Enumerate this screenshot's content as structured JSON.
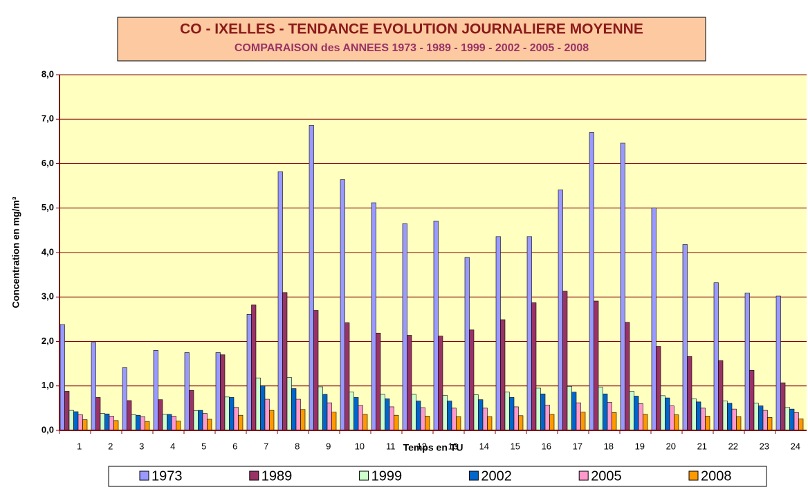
{
  "chart_data": {
    "type": "bar",
    "title": "CO - IXELLES - TENDANCE EVOLUTION JOURNALIERE MOYENNE",
    "subtitle": "COMPARAISON des ANNEES 1973 - 1989 - 1999 - 2002 - 2005 - 2008",
    "x_label": "Temps en TU",
    "y_label": "Concentration en mg/m³",
    "categories": [
      "1",
      "2",
      "3",
      "4",
      "5",
      "6",
      "7",
      "8",
      "9",
      "10",
      "11",
      "12",
      "13",
      "14",
      "15",
      "16",
      "17",
      "18",
      "19",
      "20",
      "21",
      "22",
      "23",
      "24"
    ],
    "series": [
      {
        "name": "1973",
        "color": "#9999ff",
        "values": [
          2.38,
          1.98,
          1.41,
          1.8,
          1.75,
          1.75,
          2.61,
          5.82,
          6.86,
          5.64,
          5.12,
          4.65,
          4.71,
          3.89,
          4.36,
          4.36,
          5.41,
          6.7,
          6.46,
          5.0,
          4.18,
          3.32,
          3.09,
          3.02
        ]
      },
      {
        "name": "1989",
        "color": "#993366",
        "values": [
          0.88,
          0.74,
          0.67,
          0.69,
          0.9,
          1.7,
          2.82,
          3.1,
          2.7,
          2.42,
          2.19,
          2.14,
          2.12,
          2.26,
          2.49,
          2.87,
          3.13,
          2.91,
          2.43,
          1.89,
          1.66,
          1.57,
          1.35,
          1.07
        ]
      },
      {
        "name": "1999",
        "color": "#ccffcc",
        "values": [
          0.45,
          0.38,
          0.35,
          0.36,
          0.44,
          0.75,
          1.18,
          1.19,
          0.98,
          0.86,
          0.81,
          0.81,
          0.79,
          0.8,
          0.86,
          0.95,
          0.99,
          0.97,
          0.88,
          0.78,
          0.71,
          0.66,
          0.61,
          0.52
        ]
      },
      {
        "name": "2002",
        "color": "#0066cc",
        "values": [
          0.42,
          0.37,
          0.34,
          0.36,
          0.45,
          0.74,
          1.0,
          0.94,
          0.81,
          0.74,
          0.71,
          0.66,
          0.66,
          0.69,
          0.74,
          0.82,
          0.86,
          0.82,
          0.77,
          0.73,
          0.64,
          0.61,
          0.55,
          0.48
        ]
      },
      {
        "name": "2005",
        "color": "#ff99cc",
        "values": [
          0.35,
          0.32,
          0.31,
          0.32,
          0.38,
          0.52,
          0.7,
          0.7,
          0.62,
          0.56,
          0.53,
          0.51,
          0.5,
          0.5,
          0.53,
          0.57,
          0.62,
          0.63,
          0.6,
          0.55,
          0.5,
          0.48,
          0.45,
          0.4
        ]
      },
      {
        "name": "2008",
        "color": "#ff9900",
        "values": [
          0.24,
          0.22,
          0.2,
          0.21,
          0.25,
          0.34,
          0.45,
          0.47,
          0.41,
          0.36,
          0.34,
          0.32,
          0.31,
          0.31,
          0.33,
          0.36,
          0.41,
          0.4,
          0.36,
          0.35,
          0.32,
          0.31,
          0.29,
          0.26
        ]
      }
    ],
    "ylim": [
      0,
      8
    ],
    "yticks": [
      {
        "value": 0,
        "label": "0,0"
      },
      {
        "value": 1,
        "label": "1,0"
      },
      {
        "value": 2,
        "label": "2,0"
      },
      {
        "value": 3,
        "label": "3,0"
      },
      {
        "value": 4,
        "label": "4,0"
      },
      {
        "value": 5,
        "label": "5,0"
      },
      {
        "value": 6,
        "label": "6,0"
      },
      {
        "value": 7,
        "label": "7,0"
      },
      {
        "value": 8,
        "label": "8,0"
      }
    ],
    "grid": true,
    "legend": "bottom"
  }
}
